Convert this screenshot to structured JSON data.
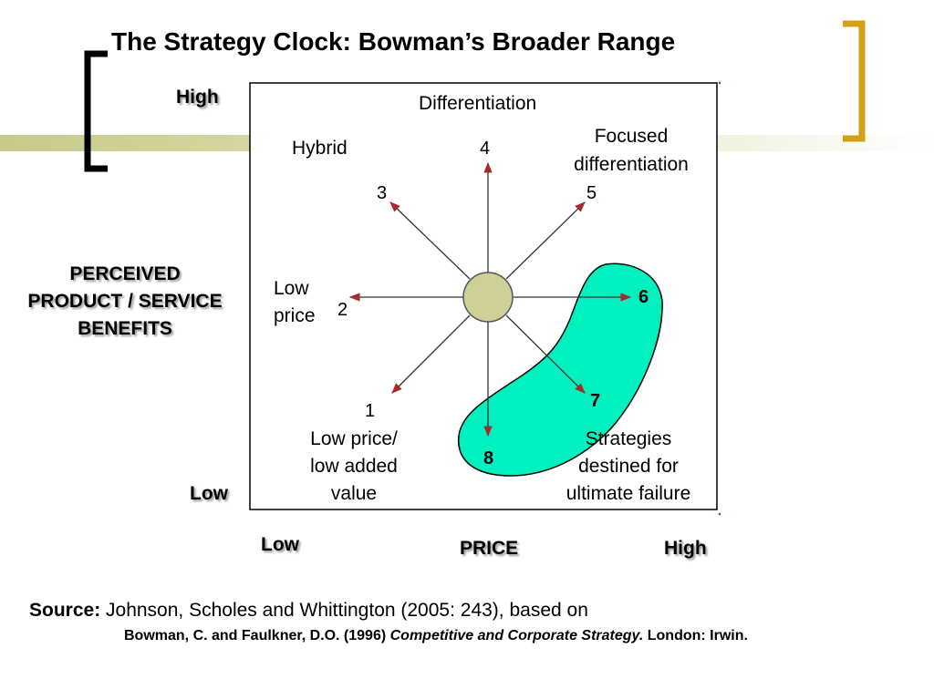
{
  "title": "The Strategy Clock: Bowman’s Broader Range",
  "y_axis": {
    "label_lines": [
      "PERCEIVED",
      "PRODUCT / SERVICE",
      "BENEFITS"
    ],
    "high": "High",
    "low": "Low"
  },
  "x_axis": {
    "label": "PRICE",
    "low": "Low",
    "high": "High"
  },
  "diagram": {
    "differentiation": "Differentiation",
    "hybrid": "Hybrid",
    "focused": [
      "Focused",
      "differentiation"
    ],
    "low_price": [
      "Low",
      "price"
    ],
    "low_price_low_value": [
      "Low price/",
      "low added",
      "value"
    ],
    "failure": [
      "Strategies",
      "destined for",
      "ultimate failure"
    ],
    "numbers": {
      "n1": "1",
      "n2": "2",
      "n3": "3",
      "n4": "4",
      "n5": "5",
      "n6": "6",
      "n7": "7",
      "n8": "8"
    }
  },
  "colors": {
    "failure_region": "#00f0c0",
    "center_circle": "#cfcf9a",
    "arrowhead": "#a52a2a",
    "bracket_left": "#000000",
    "bracket_right": "#d4a017",
    "band": "#c8c98a"
  },
  "source": {
    "label": "Source:",
    "text": " Johnson, Scholes and Whittington (2005: 243), based on",
    "ref_authors": "Bowman, C. and Faulkner, D.O. (1996) ",
    "ref_title": "Competitive and Corporate Strategy.",
    "ref_publisher": " London: Irwin."
  }
}
